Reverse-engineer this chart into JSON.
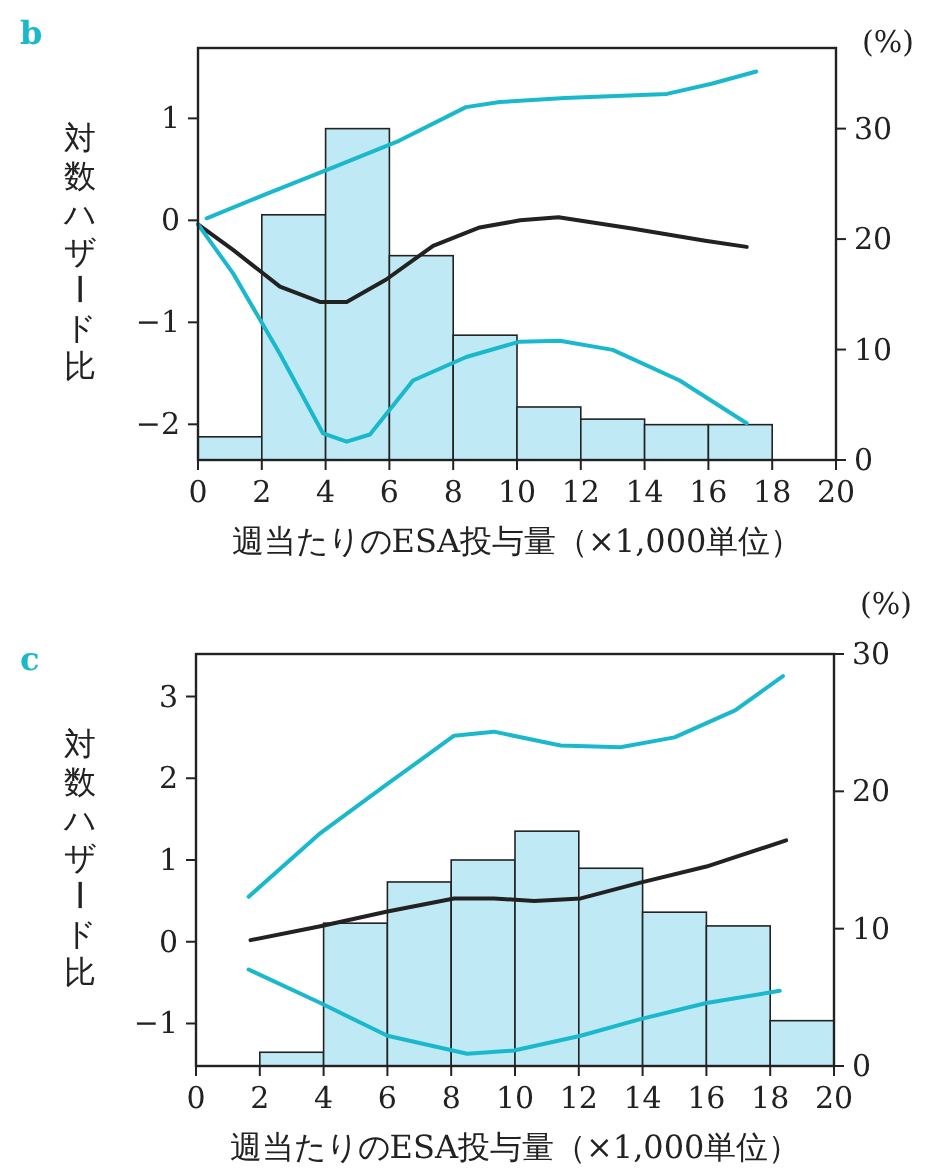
{
  "chart_data": [
    {
      "type": "line",
      "title": "b",
      "xlabel": "週当たりのESA投与量（×1,000単位）",
      "ylabel": "対数ハザード比",
      "y2label": "(%)",
      "xlim": [
        0,
        20
      ],
      "xticks": [
        0,
        2,
        4,
        6,
        8,
        10,
        12,
        14,
        16,
        18,
        20
      ],
      "ylim": [
        -2.35,
        1.69
      ],
      "yticks": [
        -2,
        -1,
        0,
        1
      ],
      "y2lim": [
        0,
        37.3
      ],
      "y2ticks": [
        0,
        10,
        20,
        30
      ],
      "series": [
        {
          "type": "histogram",
          "axis": "y2",
          "color": "#bfe9f5",
          "bins": [
            0,
            2,
            4,
            6,
            8,
            10,
            12,
            14,
            16,
            18
          ],
          "values": [
            2.1,
            22.2,
            30.0,
            18.5,
            11.3,
            4.8,
            3.7,
            3.2,
            3.2
          ]
        },
        {
          "color": "#1ab8cc",
          "x": [
            0.27,
            2.15,
            4.24,
            6.3,
            8.4,
            9.46,
            11.5,
            14.7,
            16.1,
            17.5
          ],
          "values": [
            0.02,
            0.26,
            0.52,
            0.78,
            1.11,
            1.16,
            1.2,
            1.24,
            1.34,
            1.46
          ]
        },
        {
          "color": "#222222",
          "x": [
            0,
            1.1,
            2.57,
            3.82,
            4.66,
            5.9,
            7.37,
            8.83,
            10.1,
            11.3,
            13.6,
            15.9,
            17.2
          ],
          "values": [
            -0.04,
            -0.29,
            -0.65,
            -0.8,
            -0.8,
            -0.58,
            -0.25,
            -0.07,
            0,
            0.03,
            -0.08,
            -0.2,
            -0.26
          ]
        },
        {
          "color": "#1ab8cc",
          "x": [
            0,
            1.1,
            2.57,
            3.92,
            4.66,
            5.39,
            6.74,
            8.41,
            10.08,
            11.34,
            13.0,
            15.1,
            17.2
          ],
          "values": [
            -0.04,
            -0.52,
            -1.31,
            -2.09,
            -2.17,
            -2.1,
            -1.57,
            -1.34,
            -1.19,
            -1.18,
            -1.27,
            -1.57,
            -1.99
          ]
        }
      ]
    },
    {
      "type": "line",
      "title": "c",
      "xlabel": "週当たりのESA投与量（×1,000単位）",
      "ylabel": "対数ハザード比",
      "y2label": "(%)",
      "xlim": [
        0,
        20
      ],
      "xticks": [
        0,
        2,
        4,
        6,
        8,
        10,
        12,
        14,
        16,
        18,
        20
      ],
      "ylim": [
        -1.52,
        3.52
      ],
      "yticks": [
        -1,
        0,
        1,
        2,
        3
      ],
      "y2lim": [
        0,
        30
      ],
      "y2ticks": [
        0,
        10,
        20,
        30
      ],
      "series": [
        {
          "type": "histogram",
          "axis": "y2",
          "color": "#bfe9f5",
          "bins": [
            2,
            4,
            6,
            8,
            10,
            12,
            14,
            16,
            18,
            20
          ],
          "values": [
            1.0,
            10.4,
            13.4,
            15.0,
            17.1,
            14.4,
            11.2,
            10.2,
            3.3
          ]
        },
        {
          "color": "#1ab8cc",
          "x": [
            1.65,
            3.9,
            6.0,
            8.09,
            9.34,
            11.43,
            13.3,
            15.0,
            16.9,
            18.4
          ],
          "values": [
            0.55,
            1.33,
            1.93,
            2.52,
            2.57,
            2.4,
            2.38,
            2.5,
            2.83,
            3.25
          ]
        },
        {
          "color": "#222222",
          "x": [
            1.71,
            3.9,
            6.0,
            8.09,
            9.34,
            10.6,
            12.06,
            13.9,
            16.0,
            18.5
          ],
          "values": [
            0.02,
            0.19,
            0.37,
            0.53,
            0.53,
            0.5,
            0.53,
            0.72,
            0.92,
            1.24
          ]
        },
        {
          "color": "#1ab8cc",
          "x": [
            1.65,
            3.9,
            6.0,
            8.5,
            9.97,
            12.06,
            13.9,
            16.0,
            18.3
          ],
          "values": [
            -0.34,
            -0.75,
            -1.15,
            -1.37,
            -1.33,
            -1.15,
            -0.95,
            -0.75,
            -0.6
          ]
        }
      ]
    }
  ]
}
